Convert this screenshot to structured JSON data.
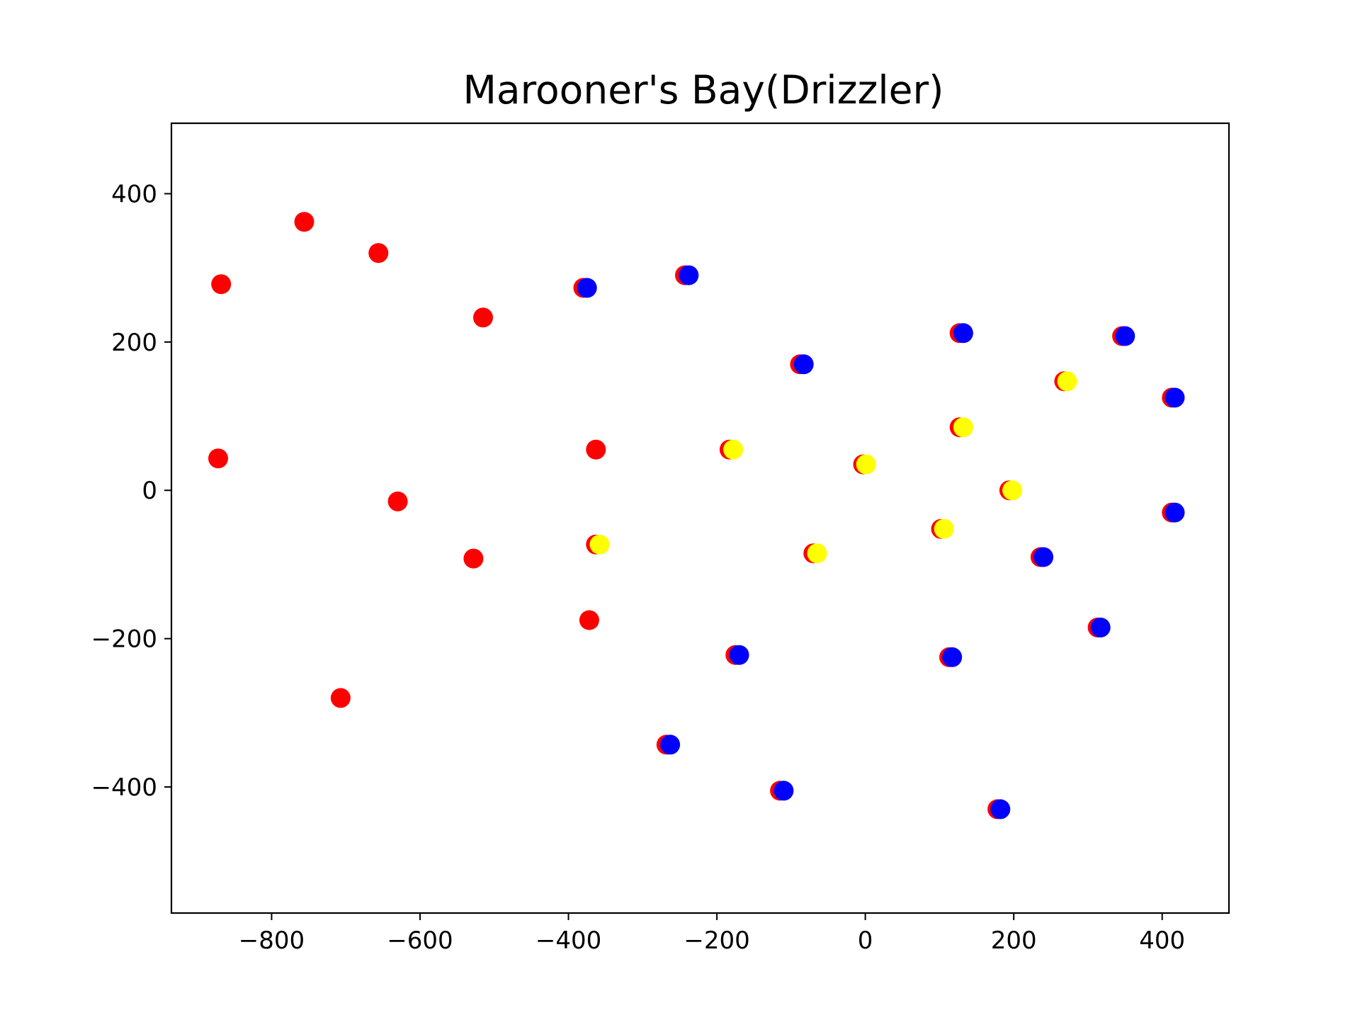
{
  "chart_data": {
    "type": "scatter",
    "title": "Marooner's Bay(Drizzler)",
    "xlabel": "",
    "ylabel": "",
    "xlim": [
      -935,
      490
    ],
    "ylim": [
      -570,
      495
    ],
    "grid": false,
    "legend": "none",
    "x_ticks": [
      -800,
      -600,
      -400,
      -200,
      0,
      200,
      400
    ],
    "y_ticks": [
      -400,
      -200,
      0,
      200,
      400
    ],
    "x_tick_labels": [
      "−800",
      "−600",
      "−400",
      "−200",
      "0",
      "200",
      "400"
    ],
    "y_tick_labels": [
      "−400",
      "−200",
      "0",
      "200",
      "400"
    ],
    "colors": {
      "red": "#ff0000",
      "blue": "#0000ff",
      "yellow": "#ffff00"
    },
    "series": [
      {
        "color": "#ff0000",
        "points": [
          [
            -868,
            278
          ],
          [
            -756,
            362
          ],
          [
            -656,
            320
          ],
          [
            -515,
            233
          ],
          [
            -872,
            43
          ],
          [
            -630,
            -15
          ],
          [
            -528,
            -92
          ],
          [
            -363,
            55
          ],
          [
            -372,
            -175
          ],
          [
            -707,
            -280
          ],
          [
            -380,
            273
          ],
          [
            -243,
            290
          ],
          [
            -88,
            170
          ],
          [
            127,
            212
          ],
          [
            346,
            208
          ],
          [
            413,
            125
          ],
          [
            413,
            -30
          ],
          [
            236,
            -90
          ],
          [
            313,
            -185
          ],
          [
            113,
            -225
          ],
          [
            -175,
            -222
          ],
          [
            -268,
            -343
          ],
          [
            -115,
            -405
          ],
          [
            178,
            -430
          ],
          [
            -183,
            55
          ],
          [
            -3,
            35
          ],
          [
            127,
            85
          ],
          [
            268,
            147
          ],
          [
            194,
            0
          ],
          [
            102,
            -52
          ],
          [
            -363,
            -73
          ],
          [
            -70,
            -85
          ]
        ]
      },
      {
        "color": "#0000ff",
        "points": [
          [
            -375,
            273
          ],
          [
            -238,
            290
          ],
          [
            -83,
            170
          ],
          [
            132,
            212
          ],
          [
            350,
            208
          ],
          [
            417,
            125
          ],
          [
            417,
            -30
          ],
          [
            240,
            -90
          ],
          [
            317,
            -185
          ],
          [
            117,
            -225
          ],
          [
            -170,
            -222
          ],
          [
            -263,
            -343
          ],
          [
            -110,
            -405
          ],
          [
            182,
            -430
          ]
        ]
      },
      {
        "color": "#ffff00",
        "points": [
          [
            -178,
            55
          ],
          [
            1,
            35
          ],
          [
            132,
            85
          ],
          [
            272,
            147
          ],
          [
            198,
            0
          ],
          [
            106,
            -52
          ],
          [
            -358,
            -73
          ],
          [
            -65,
            -85
          ]
        ]
      }
    ]
  }
}
